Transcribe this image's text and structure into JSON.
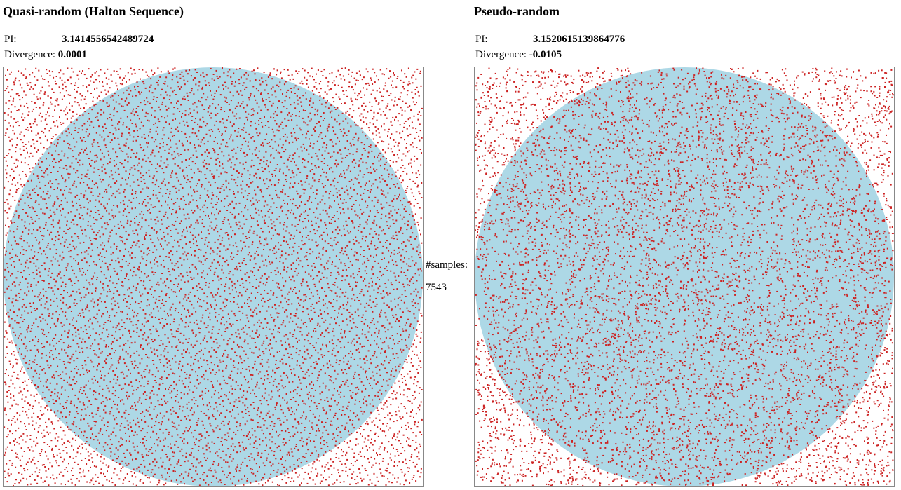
{
  "colors": {
    "circle_fill": "#add8e6",
    "point_fill": "#cc2222",
    "plot_border": "#888888"
  },
  "quasi": {
    "title": "Quasi-random (Halton Sequence)",
    "pi_label": "PI:",
    "pi_value": "3.1414556542489724",
    "divergence_label": "Divergence:",
    "divergence_value": "0.0001"
  },
  "pseudo": {
    "title": "Pseudo-random",
    "pi_label": "PI:",
    "pi_value": "3.1520615139864776",
    "divergence_label": "Divergence:",
    "divergence_value": "-0.0105"
  },
  "samples": {
    "label": "#samples:",
    "value": "7543"
  }
}
